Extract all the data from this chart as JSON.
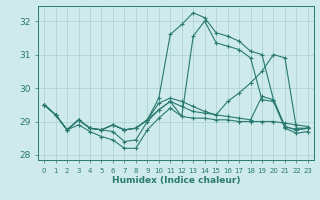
{
  "xlabel": "Humidex (Indice chaleur)",
  "background_color": "#ceeaea",
  "grid_color": "#aacfcf",
  "line_color": "#2a7a72",
  "xlim": [
    -0.5,
    23.5
  ],
  "ylim": [
    27.85,
    32.45
  ],
  "yticks": [
    28,
    29,
    30,
    31,
    32
  ],
  "xticks": [
    0,
    1,
    2,
    3,
    4,
    5,
    6,
    7,
    8,
    9,
    10,
    11,
    12,
    13,
    14,
    15,
    16,
    17,
    18,
    19,
    20,
    21,
    22,
    23
  ],
  "series": [
    [
      29.5,
      29.2,
      28.75,
      29.05,
      28.8,
      28.75,
      28.7,
      28.4,
      28.45,
      29.0,
      29.35,
      29.6,
      29.15,
      29.1,
      29.1,
      29.05,
      29.05,
      29.0,
      29.0,
      29.0,
      29.0,
      28.95,
      28.9,
      28.85
    ],
    [
      29.5,
      29.2,
      28.75,
      29.05,
      28.8,
      28.75,
      28.9,
      28.75,
      28.8,
      29.05,
      29.7,
      31.6,
      31.9,
      32.25,
      32.1,
      31.65,
      31.55,
      31.4,
      31.1,
      31.0,
      29.65,
      28.85,
      28.75,
      28.8
    ],
    [
      29.5,
      29.2,
      28.75,
      29.05,
      28.8,
      28.75,
      28.9,
      28.75,
      28.8,
      29.05,
      29.55,
      29.7,
      29.6,
      29.45,
      29.3,
      29.2,
      29.15,
      29.1,
      29.05,
      29.75,
      29.65,
      28.85,
      28.75,
      28.8
    ],
    [
      29.5,
      29.2,
      28.75,
      28.9,
      28.7,
      28.55,
      28.45,
      28.2,
      28.2,
      28.75,
      29.1,
      29.4,
      29.15,
      31.55,
      32.0,
      31.35,
      31.25,
      31.15,
      30.9,
      29.65,
      29.6,
      28.8,
      28.65,
      28.7
    ],
    [
      29.5,
      29.2,
      28.75,
      29.05,
      28.8,
      28.75,
      28.9,
      28.75,
      28.8,
      29.05,
      29.35,
      29.6,
      29.45,
      29.3,
      29.25,
      29.2,
      29.6,
      29.85,
      30.15,
      30.5,
      31.0,
      30.9,
      28.8,
      28.8
    ]
  ]
}
